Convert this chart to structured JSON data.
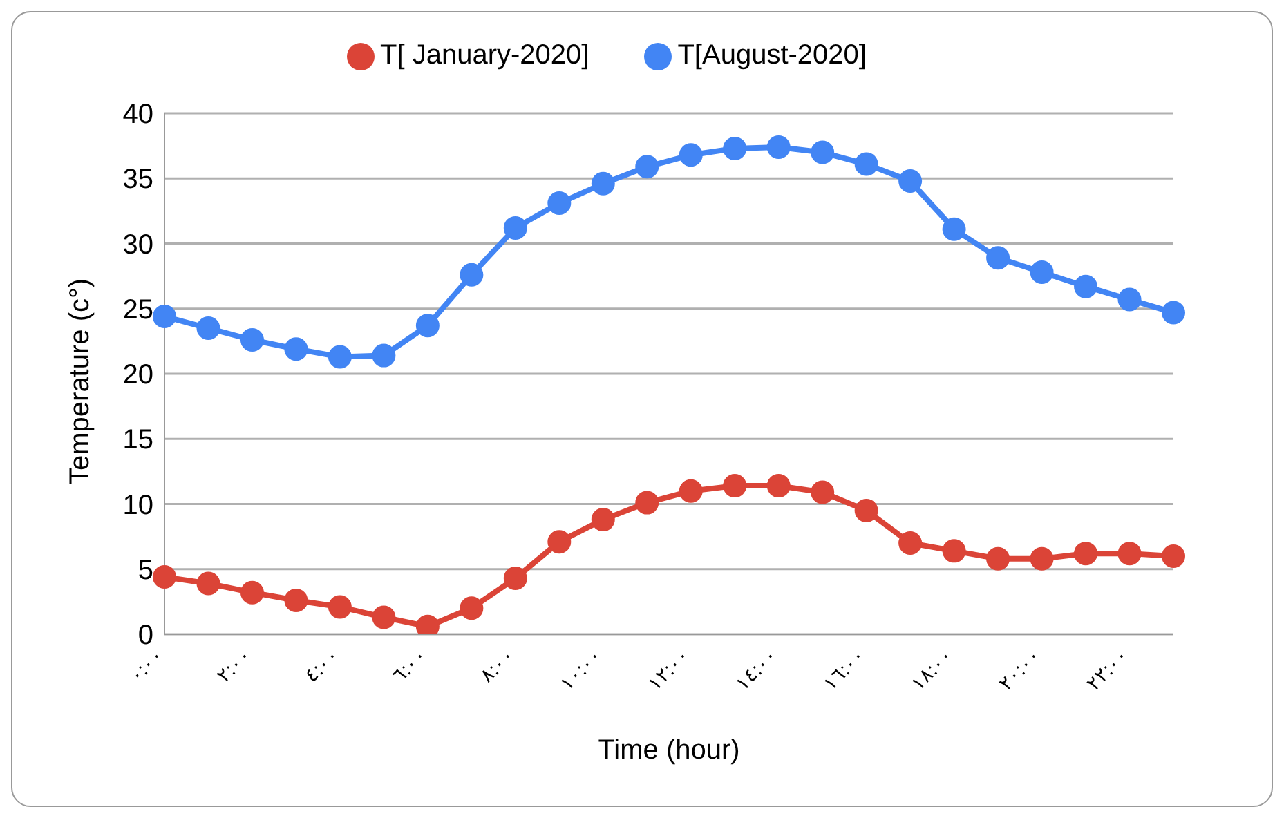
{
  "chart_data": {
    "type": "line",
    "xlabel": "Time (hour)",
    "ylabel": "Temperature (c°)",
    "categories": [
      "٠:٠٠",
      null,
      "٢:٠٠",
      null,
      "٤:٠٠",
      null,
      "٦:٠٠",
      null,
      "٨:٠٠",
      null,
      "١٠:٠٠",
      null,
      "١٢:٠٠",
      null,
      "١٤:٠٠",
      null,
      "١٦:٠٠",
      null,
      "١٨:٠٠",
      null,
      "٢٠:٠٠",
      null,
      "٢٢:٠٠",
      null
    ],
    "series": [
      {
        "name": "T[August-2020]",
        "color": "#4285f4",
        "values": [
          24.4,
          23.5,
          22.6,
          21.9,
          21.3,
          21.4,
          23.7,
          27.6,
          31.2,
          33.1,
          34.6,
          35.9,
          36.8,
          37.3,
          37.4,
          37.0,
          36.1,
          34.8,
          31.1,
          28.9,
          27.8,
          26.7,
          25.7,
          24.7
        ]
      },
      {
        "name": "T[ January-2020]",
        "color": "#db4437",
        "values": [
          4.4,
          3.9,
          3.2,
          2.6,
          2.1,
          1.3,
          0.6,
          2.0,
          4.3,
          7.1,
          8.8,
          10.1,
          11.0,
          11.4,
          11.4,
          10.9,
          9.5,
          7.0,
          6.4,
          5.8,
          5.8,
          6.2,
          6.2,
          6.0
        ]
      }
    ],
    "ylim": [
      0,
      40
    ],
    "yticks": [
      0,
      5,
      10,
      15,
      20,
      25,
      30,
      35,
      40
    ],
    "grid": "y",
    "legend": "top",
    "marker": "circle",
    "line_style": "solid"
  }
}
